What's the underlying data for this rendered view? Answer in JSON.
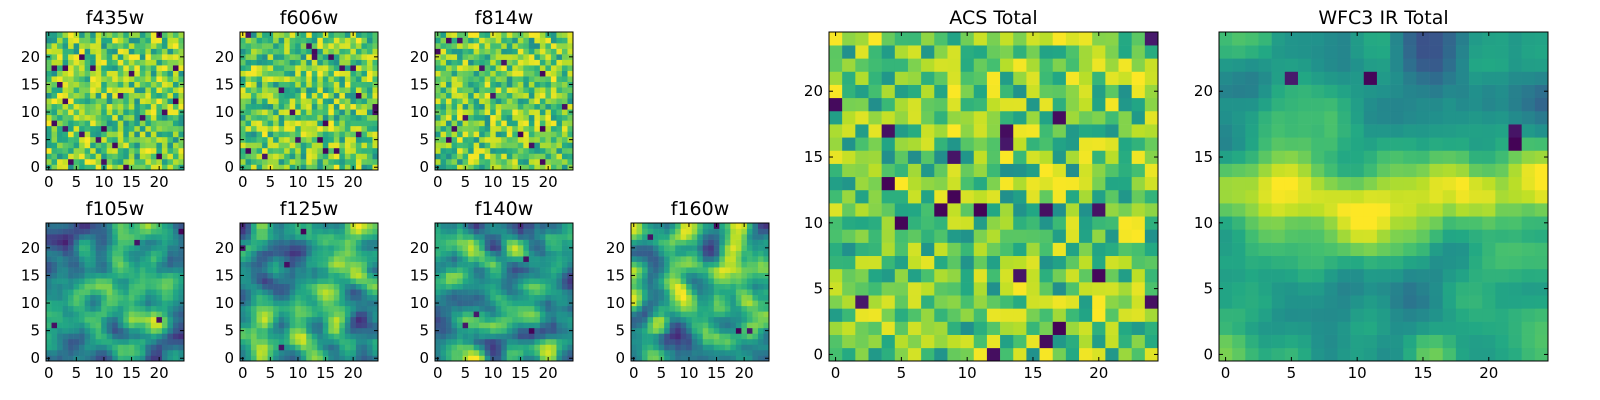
{
  "chart_data": [
    {
      "id": "f435w",
      "type": "heatmap",
      "title": "f435w",
      "cols": 25,
      "rows": 25,
      "xlim": [
        -0.5,
        24.5
      ],
      "ylim": [
        -0.5,
        24.5
      ],
      "x_ticks": [
        0,
        5,
        10,
        15,
        20
      ],
      "y_ticks": [
        0,
        5,
        10,
        15,
        20
      ],
      "colormap": "viridis",
      "character": "uncorrelated pixel noise",
      "grid": false
    },
    {
      "id": "f606w",
      "type": "heatmap",
      "title": "f606w",
      "cols": 25,
      "rows": 25,
      "xlim": [
        -0.5,
        24.5
      ],
      "ylim": [
        -0.5,
        24.5
      ],
      "x_ticks": [
        0,
        5,
        10,
        15,
        20
      ],
      "y_ticks": [
        0,
        5,
        10,
        15,
        20
      ],
      "colormap": "viridis",
      "character": "uncorrelated pixel noise",
      "grid": false
    },
    {
      "id": "f814w",
      "type": "heatmap",
      "title": "f814w",
      "cols": 25,
      "rows": 25,
      "xlim": [
        -0.5,
        24.5
      ],
      "ylim": [
        -0.5,
        24.5
      ],
      "x_ticks": [
        0,
        5,
        10,
        15,
        20
      ],
      "y_ticks": [
        0,
        5,
        10,
        15,
        20
      ],
      "colormap": "viridis",
      "character": "uncorrelated pixel noise",
      "grid": false
    },
    {
      "id": "f105w",
      "type": "heatmap",
      "title": "f105w",
      "cols": 25,
      "rows": 25,
      "xlim": [
        -0.5,
        24.5
      ],
      "ylim": [
        -0.5,
        24.5
      ],
      "x_ticks": [
        0,
        5,
        10,
        15,
        20
      ],
      "y_ticks": [
        0,
        5,
        10,
        15,
        20
      ],
      "colormap": "viridis",
      "character": "smoothed noise, brighter near center",
      "grid": false
    },
    {
      "id": "f125w",
      "type": "heatmap",
      "title": "f125w",
      "cols": 25,
      "rows": 25,
      "xlim": [
        -0.5,
        24.5
      ],
      "ylim": [
        -0.5,
        24.5
      ],
      "x_ticks": [
        0,
        5,
        10,
        15,
        20
      ],
      "y_ticks": [
        0,
        5,
        10,
        15,
        20
      ],
      "colormap": "viridis",
      "character": "smoothed noise",
      "grid": false
    },
    {
      "id": "f140w",
      "type": "heatmap",
      "title": "f140w",
      "cols": 25,
      "rows": 25,
      "xlim": [
        -0.5,
        24.5
      ],
      "ylim": [
        -0.5,
        24.5
      ],
      "x_ticks": [
        0,
        5,
        10,
        15,
        20
      ],
      "y_ticks": [
        0,
        5,
        10,
        15,
        20
      ],
      "colormap": "viridis",
      "character": "smoothed noise",
      "grid": false
    },
    {
      "id": "f160w",
      "type": "heatmap",
      "title": "f160w",
      "cols": 25,
      "rows": 25,
      "xlim": [
        -0.5,
        24.5
      ],
      "ylim": [
        -0.5,
        24.5
      ],
      "x_ticks": [
        0,
        5,
        10,
        15,
        20
      ],
      "y_ticks": [
        0,
        5,
        10,
        15,
        20
      ],
      "colormap": "viridis",
      "character": "smoothed noise",
      "grid": false
    },
    {
      "id": "acs_total",
      "type": "heatmap",
      "title": "ACS Total",
      "cols": 25,
      "rows": 25,
      "xlim": [
        -0.5,
        24.5
      ],
      "ylim": [
        -0.5,
        24.5
      ],
      "x_ticks": [
        0,
        5,
        10,
        15,
        20
      ],
      "y_ticks": [
        0,
        5,
        10,
        15,
        20
      ],
      "colormap": "viridis",
      "character": "uncorrelated pixel noise, mostly high values",
      "grid": false
    },
    {
      "id": "wfc3_total",
      "type": "heatmap",
      "title": "WFC3 IR Total",
      "cols": 25,
      "rows": 25,
      "xlim": [
        -0.5,
        24.5
      ],
      "ylim": [
        -0.5,
        24.5
      ],
      "x_ticks": [
        0,
        5,
        10,
        15,
        20
      ],
      "y_ticks": [
        0,
        5,
        10,
        15,
        20
      ],
      "colormap": "viridis",
      "character": "smoothed noise with bright horizontal band near y=12",
      "grid": false
    }
  ]
}
